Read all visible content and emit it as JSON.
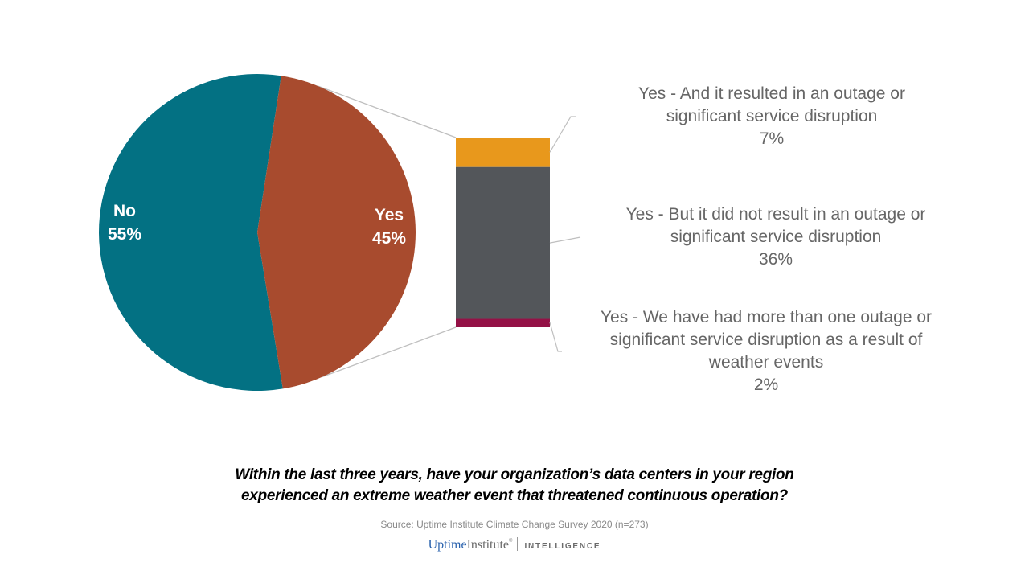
{
  "chart_data": {
    "type": "pie",
    "title": "Within the last three years, have your organization's data centers in your region experienced an extreme weather event that threatened continuous operation?",
    "pie": {
      "slices": [
        {
          "label": "No",
          "value": 55,
          "value_label": "55%",
          "color": "#037183"
        },
        {
          "label": "Yes",
          "value": 45,
          "value_label": "45%",
          "color": "#a84b2e"
        }
      ]
    },
    "breakdown": {
      "of": "Yes",
      "type": "stacked-bar",
      "segments": [
        {
          "label": "Yes - And it resulted in an outage or significant service disruption",
          "value": 7,
          "value_label": "7%",
          "color": "#e8981c"
        },
        {
          "label": "Yes - But it did not result in an outage or significant service disruption",
          "value": 36,
          "value_label": "36%",
          "color": "#53565a"
        },
        {
          "label": "Yes - We have had more than one outage or significant service disruption as a result of weather events",
          "value": 2,
          "value_label": "2%",
          "color": "#941146"
        }
      ]
    },
    "connector_color": "#bfbfbf"
  },
  "callouts": [
    {
      "lines": [
        "Yes - And it resulted in an outage or",
        "significant service disruption"
      ],
      "value": "7%"
    },
    {
      "lines": [
        "Yes - But it did not result in an outage or",
        "significant service disruption"
      ],
      "value": "36%"
    },
    {
      "lines": [
        "Yes - We have had more than one outage or",
        "significant service disruption as a result of",
        "weather events"
      ],
      "value": "2%"
    }
  ],
  "question": {
    "line1": "Within the last three years, have your organization’s data centers in your region",
    "line2": "experienced an extreme weather event that threatened continuous operation?"
  },
  "source": "Source: Uptime Institute Climate Change Survey 2020 (n=273)",
  "logo": {
    "part1": "Uptime",
    "part2": "Institute",
    "reg": "®",
    "tagline": "INTELLIGENCE"
  }
}
